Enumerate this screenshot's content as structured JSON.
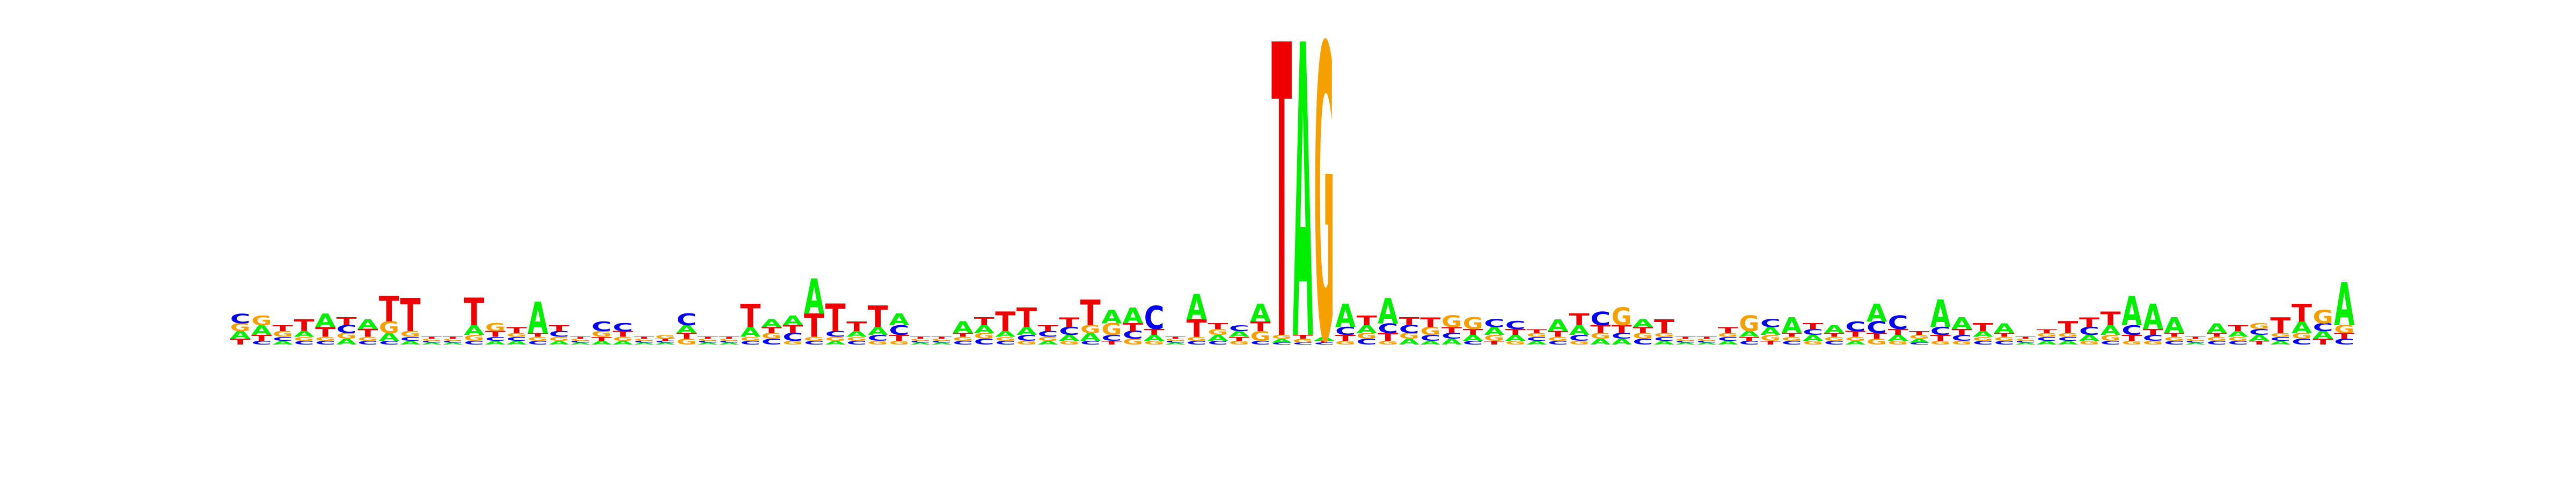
{
  "chart_data": {
    "type": "sequence-logo",
    "alphabet": [
      "A",
      "C",
      "G",
      "T"
    ],
    "colors": {
      "A": "#00ee00",
      "C": "#0000ee",
      "G": "#f5a000",
      "T": "#ee0000"
    },
    "ylim": [
      0,
      2
    ],
    "positions": [
      {
        "A": 0.04,
        "C": 0.05,
        "G": 0.04,
        "T": 0.03
      },
      {
        "A": 0.05,
        "C": 0.02,
        "G": 0.05,
        "T": 0.03
      },
      {
        "A": 0.02,
        "C": 0.02,
        "G": 0.03,
        "T": 0.03
      },
      {
        "A": 0.03,
        "C": 0.02,
        "G": 0.02,
        "T": 0.06
      },
      {
        "A": 0.07,
        "C": 0.02,
        "G": 0.02,
        "T": 0.05
      },
      {
        "A": 0.03,
        "C": 0.04,
        "G": 0.03,
        "T": 0.04
      },
      {
        "A": 0.05,
        "C": 0.02,
        "G": 0.02,
        "T": 0.04
      },
      {
        "A": 0.04,
        "C": 0.02,
        "G": 0.06,
        "T": 0.13
      },
      {
        "A": 0.02,
        "C": 0.02,
        "G": 0.03,
        "T": 0.17
      },
      {
        "A": 0.01,
        "C": 0.01,
        "G": 0.01,
        "T": 0.01
      },
      {
        "A": 0.01,
        "C": 0.01,
        "G": 0.01,
        "T": 0.01
      },
      {
        "A": 0.05,
        "C": 0.02,
        "G": 0.03,
        "T": 0.14
      },
      {
        "A": 0.02,
        "C": 0.02,
        "G": 0.04,
        "T": 0.03
      },
      {
        "A": 0.02,
        "C": 0.02,
        "G": 0.02,
        "T": 0.03
      },
      {
        "A": 0.16,
        "C": 0.02,
        "G": 0.02,
        "T": 0.02
      },
      {
        "A": 0.02,
        "C": 0.03,
        "G": 0.02,
        "T": 0.03
      },
      {
        "A": 0.01,
        "C": 0.01,
        "G": 0.01,
        "T": 0.01
      },
      {
        "A": 0.02,
        "C": 0.05,
        "G": 0.03,
        "T": 0.02
      },
      {
        "A": 0.02,
        "C": 0.04,
        "G": 0.02,
        "T": 0.03
      },
      {
        "A": 0.01,
        "C": 0.01,
        "G": 0.01,
        "T": 0.01
      },
      {
        "A": 0.01,
        "C": 0.01,
        "G": 0.02,
        "T": 0.01
      },
      {
        "A": 0.04,
        "C": 0.06,
        "G": 0.03,
        "T": 0.03
      },
      {
        "A": 0.01,
        "C": 0.01,
        "G": 0.01,
        "T": 0.01
      },
      {
        "A": 0.01,
        "C": 0.01,
        "G": 0.01,
        "T": 0.01
      },
      {
        "A": 0.05,
        "C": 0.02,
        "G": 0.02,
        "T": 0.12
      },
      {
        "A": 0.04,
        "C": 0.03,
        "G": 0.03,
        "T": 0.03
      },
      {
        "A": 0.05,
        "C": 0.04,
        "G": 0.02,
        "T": 0.04
      },
      {
        "A": 0.18,
        "C": 0.02,
        "G": 0.02,
        "T": 0.12
      },
      {
        "A": 0.02,
        "C": 0.03,
        "G": 0.02,
        "T": 0.14
      },
      {
        "A": 0.03,
        "C": 0.02,
        "G": 0.02,
        "T": 0.05
      },
      {
        "A": 0.04,
        "C": 0.03,
        "G": 0.02,
        "T": 0.11
      },
      {
        "A": 0.06,
        "C": 0.05,
        "G": 0.02,
        "T": 0.03
      },
      {
        "A": 0.01,
        "C": 0.01,
        "G": 0.01,
        "T": 0.01
      },
      {
        "A": 0.01,
        "C": 0.01,
        "G": 0.01,
        "T": 0.01
      },
      {
        "A": 0.06,
        "C": 0.02,
        "G": 0.02,
        "T": 0.02
      },
      {
        "A": 0.04,
        "C": 0.03,
        "G": 0.03,
        "T": 0.04
      },
      {
        "A": 0.03,
        "C": 0.02,
        "G": 0.02,
        "T": 0.1
      },
      {
        "A": 0.04,
        "C": 0.03,
        "G": 0.02,
        "T": 0.1
      },
      {
        "A": 0.02,
        "C": 0.03,
        "G": 0.02,
        "T": 0.03
      },
      {
        "A": 0.03,
        "C": 0.04,
        "G": 0.02,
        "T": 0.05
      },
      {
        "A": 0.04,
        "C": 0.02,
        "G": 0.04,
        "T": 0.13
      },
      {
        "A": 0.07,
        "C": 0.03,
        "G": 0.06,
        "T": 0.02
      },
      {
        "A": 0.08,
        "C": 0.04,
        "G": 0.03,
        "T": 0.04
      },
      {
        "A": 0.03,
        "C": 0.12,
        "G": 0.02,
        "T": 0.03
      },
      {
        "A": 0.01,
        "C": 0.01,
        "G": 0.01,
        "T": 0.01
      },
      {
        "A": 0.13,
        "C": 0.02,
        "G": 0.02,
        "T": 0.09
      },
      {
        "A": 0.03,
        "C": 0.02,
        "G": 0.03,
        "T": 0.03
      },
      {
        "A": 0.03,
        "C": 0.03,
        "G": 0.02,
        "T": 0.02
      },
      {
        "A": 0.09,
        "C": 0.02,
        "G": 0.05,
        "T": 0.05
      },
      {
        "A": 0.02,
        "C": 0.01,
        "G": 0.02,
        "T": 1.5
      },
      {
        "A": 1.5,
        "C": 0.01,
        "G": 0.02,
        "T": 0.02
      },
      {
        "A": 0.02,
        "C": 0.01,
        "G": 1.5,
        "T": 0.01
      },
      {
        "A": 0.12,
        "C": 0.04,
        "G": 0.02,
        "T": 0.03
      },
      {
        "A": 0.04,
        "C": 0.03,
        "G": 0.03,
        "T": 0.05
      },
      {
        "A": 0.13,
        "C": 0.05,
        "G": 0.02,
        "T": 0.04
      },
      {
        "A": 0.03,
        "C": 0.04,
        "G": 0.03,
        "T": 0.04
      },
      {
        "A": 0.02,
        "C": 0.03,
        "G": 0.04,
        "T": 0.05
      },
      {
        "A": 0.03,
        "C": 0.03,
        "G": 0.06,
        "T": 0.03
      },
      {
        "A": 0.03,
        "C": 0.02,
        "G": 0.06,
        "T": 0.03
      },
      {
        "A": 0.04,
        "C": 0.04,
        "G": 0.03,
        "T": 0.02
      },
      {
        "A": 0.03,
        "C": 0.04,
        "G": 0.02,
        "T": 0.03
      },
      {
        "A": 0.02,
        "C": 0.02,
        "G": 0.02,
        "T": 0.02
      },
      {
        "A": 0.06,
        "C": 0.02,
        "G": 0.02,
        "T": 0.03
      },
      {
        "A": 0.05,
        "C": 0.03,
        "G": 0.02,
        "T": 0.06
      },
      {
        "A": 0.03,
        "C": 0.07,
        "G": 0.03,
        "T": 0.04
      },
      {
        "A": 0.03,
        "C": 0.03,
        "G": 0.09,
        "T": 0.04
      },
      {
        "A": 0.04,
        "C": 0.03,
        "G": 0.03,
        "T": 0.03
      },
      {
        "A": 0.02,
        "C": 0.02,
        "G": 0.02,
        "T": 0.07
      },
      {
        "A": 0.01,
        "C": 0.01,
        "G": 0.01,
        "T": 0.01
      },
      {
        "A": 0.01,
        "C": 0.01,
        "G": 0.01,
        "T": 0.01
      },
      {
        "A": 0.02,
        "C": 0.02,
        "G": 0.02,
        "T": 0.03
      },
      {
        "A": 0.03,
        "C": 0.02,
        "G": 0.08,
        "T": 0.02
      },
      {
        "A": 0.04,
        "C": 0.04,
        "G": 0.03,
        "T": 0.02
      },
      {
        "A": 0.08,
        "C": 0.02,
        "G": 0.02,
        "T": 0.02
      },
      {
        "A": 0.03,
        "C": 0.03,
        "G": 0.02,
        "T": 0.03
      },
      {
        "A": 0.04,
        "C": 0.02,
        "G": 0.02,
        "T": 0.02
      },
      {
        "A": 0.02,
        "C": 0.05,
        "G": 0.02,
        "T": 0.03
      },
      {
        "A": 0.09,
        "C": 0.06,
        "G": 0.03,
        "T": 0.03
      },
      {
        "A": 0.03,
        "C": 0.07,
        "G": 0.02,
        "T": 0.03
      },
      {
        "A": 0.02,
        "C": 0.01,
        "G": 0.02,
        "T": 0.02
      },
      {
        "A": 0.14,
        "C": 0.04,
        "G": 0.02,
        "T": 0.03
      },
      {
        "A": 0.06,
        "C": 0.03,
        "G": 0.02,
        "T": 0.03
      },
      {
        "A": 0.03,
        "C": 0.02,
        "G": 0.02,
        "T": 0.04
      },
      {
        "A": 0.05,
        "C": 0.02,
        "G": 0.02,
        "T": 0.02
      },
      {
        "A": 0.01,
        "C": 0.01,
        "G": 0.01,
        "T": 0.01
      },
      {
        "A": 0.02,
        "C": 0.02,
        "G": 0.02,
        "T": 0.02
      },
      {
        "A": 0.02,
        "C": 0.02,
        "G": 0.02,
        "T": 0.06
      },
      {
        "A": 0.03,
        "C": 0.04,
        "G": 0.02,
        "T": 0.05
      },
      {
        "A": 0.05,
        "C": 0.02,
        "G": 0.03,
        "T": 0.07
      },
      {
        "A": 0.15,
        "C": 0.05,
        "G": 0.02,
        "T": 0.03
      },
      {
        "A": 0.13,
        "C": 0.03,
        "G": 0.02,
        "T": 0.03
      },
      {
        "A": 0.08,
        "C": 0.02,
        "G": 0.02,
        "T": 0.02
      },
      {
        "A": 0.01,
        "C": 0.01,
        "G": 0.01,
        "T": 0.01
      },
      {
        "A": 0.05,
        "C": 0.02,
        "G": 0.02,
        "T": 0.02
      },
      {
        "A": 0.03,
        "C": 0.02,
        "G": 0.02,
        "T": 0.03
      },
      {
        "A": 0.03,
        "C": 0.03,
        "G": 0.03,
        "T": 0.02
      },
      {
        "A": 0.02,
        "C": 0.02,
        "G": 0.02,
        "T": 0.08
      },
      {
        "A": 0.06,
        "C": 0.03,
        "G": 0.03,
        "T": 0.09
      },
      {
        "A": 0.04,
        "C": 0.04,
        "G": 0.07,
        "T": 0.03
      },
      {
        "A": 0.22,
        "C": 0.03,
        "G": 0.04,
        "T": 0.03
      }
    ]
  }
}
